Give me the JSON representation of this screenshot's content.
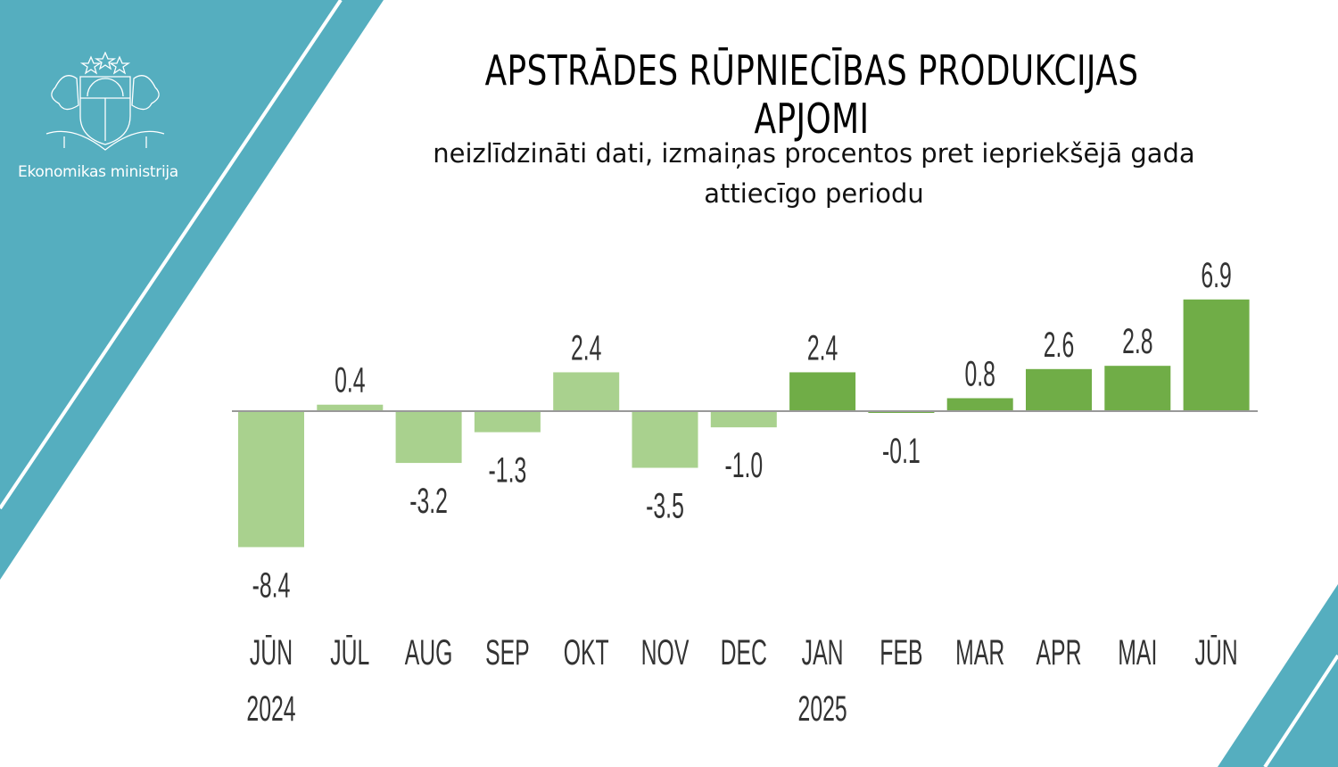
{
  "organization": "Ekonomikas ministrija",
  "colors": {
    "background_accent": "#55aebf",
    "bar_2024": "#a9d18e",
    "bar_2025": "#70ad47",
    "axis": "#999999"
  },
  "chart_data": {
    "type": "bar",
    "title": "APSTRĀDES RŪPNIECĪBAS PRODUKCIJAS APJOMI",
    "subtitle": "neizlīdzināti dati, izmaiņas procentos pret iepriekšējā gada attiecīgo periodu",
    "categories": [
      "JŪN",
      "JŪL",
      "AUG",
      "SEP",
      "OKT",
      "NOV",
      "DEC",
      "JAN",
      "FEB",
      "MAR",
      "APR",
      "MAI",
      "JŪN"
    ],
    "year_labels": [
      {
        "index": 0,
        "label": "2024"
      },
      {
        "index": 7,
        "label": "2025"
      }
    ],
    "values": [
      -8.4,
      0.4,
      -3.2,
      -1.3,
      2.4,
      -3.5,
      -1.0,
      2.4,
      -0.1,
      0.8,
      2.6,
      2.8,
      6.9
    ],
    "value_labels": [
      "-8.4",
      "0.4",
      "-3.2",
      "-1.3",
      "2.4",
      "-3.5",
      "-1.0",
      "2.4",
      "-0.1",
      "0.8",
      "2.6",
      "2.8",
      "6.9"
    ],
    "bar_years": [
      "2024",
      "2024",
      "2024",
      "2024",
      "2024",
      "2024",
      "2024",
      "2025",
      "2025",
      "2025",
      "2025",
      "2025",
      "2025"
    ],
    "xlabel": "",
    "ylabel": "",
    "ylim": [
      -8.4,
      6.9
    ],
    "grid": false,
    "legend": "none"
  }
}
